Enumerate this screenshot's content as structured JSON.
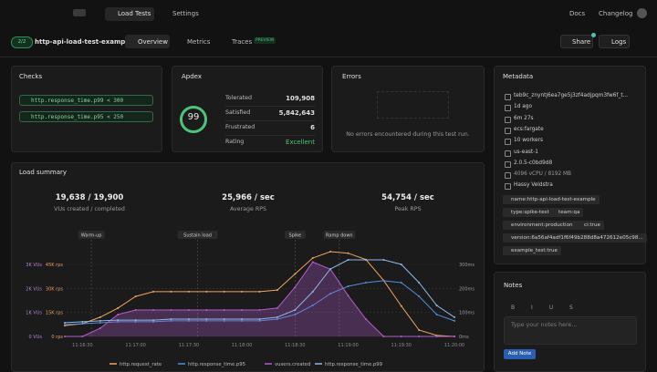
{
  "nav": {
    "items": [
      "Load Tests",
      "Settings"
    ],
    "right": [
      "Docs",
      "Changelog"
    ]
  },
  "header": {
    "badge": "2/2",
    "test_name": "http-api-load-test-example",
    "tabs": [
      "Overview",
      "Metrics",
      "Traces"
    ],
    "preview": "PREVIEW",
    "buttons": [
      "Share",
      "Logs"
    ]
  },
  "checks": {
    "title": "Checks",
    "items": [
      "http.response_time.p99 < 300",
      "http.response_time.p95 < 250"
    ]
  },
  "apdex": {
    "title": "Apdex",
    "score": 99,
    "rows": [
      {
        "label": "Tolerated",
        "value": "109,908"
      },
      {
        "label": "Satisfied",
        "value": "5,842,643"
      },
      {
        "label": "Frustrated",
        "value": "6"
      },
      {
        "label": "Rating",
        "value": "Excellent"
      }
    ]
  },
  "errors": {
    "title": "Errors",
    "message": "No errors encountered during this test run."
  },
  "metadata": {
    "title": "Metadata",
    "items": [
      "teb9c_znyntj6ea7ge5j3zf4adjpqm3fw6f_t...",
      "1d ago",
      "6m 27s",
      "ecs:fargate",
      "10 workers",
      "us-east-1",
      "2.0.5-c0bd9d8",
      "4096 vCPU / 8192 MB",
      "Hassy Veldstra"
    ],
    "tags": [
      "name:http-api-load-test-example",
      "type:spike-test",
      "team:qa",
      "environment:production",
      "ci:true",
      "version:6a56af4adf1f6f49b288d8a472612e05c98...",
      "example_test:true"
    ]
  },
  "load_summary": {
    "title": "Load summary",
    "stats": [
      {
        "value": "19,638 / 19,900",
        "label": "VUs created / completed"
      },
      {
        "value": "25,966 / sec",
        "label": "Average RPS"
      },
      {
        "value": "54,754 / sec",
        "label": "Peak RPS"
      }
    ],
    "chart": {
      "type": "line",
      "x": [
        "11:16:20",
        "11:16:30",
        "11:16:40",
        "11:16:50",
        "11:17:00",
        "11:17:10",
        "11:17:20",
        "11:17:30",
        "11:17:40",
        "11:17:50",
        "11:18:00",
        "11:18:10",
        "11:18:20",
        "11:18:30",
        "11:18:40",
        "11:18:50",
        "11:19:00",
        "11:19:10",
        "11:19:20",
        "11:19:30",
        "11:19:40",
        "11:19:50",
        "11:20:00"
      ],
      "xlim": [
        "11:16:20",
        "11:20:00"
      ],
      "xticks": [
        "11:16:30",
        "11:17:00",
        "11:17:30",
        "11:18:00",
        "11:18:30",
        "11:19:00",
        "11:19:30",
        "11:20:00"
      ],
      "axes": {
        "vus": {
          "lim": [
            0,
            3760
          ],
          "ticks": [
            {
              "value": 0,
              "label": "0 VUs"
            },
            {
              "value": 1000,
              "label": "1K VUs"
            },
            {
              "value": 2000,
              "label": "2K VUs"
            },
            {
              "value": 3000,
              "label": "3K VUs"
            }
          ]
        },
        "rps": {
          "lim": [
            0,
            56400
          ],
          "ticks": [
            {
              "value": 0,
              "label": "0 rps"
            },
            {
              "value": 15000,
              "label": "15K rps"
            },
            {
              "value": 30000,
              "label": "30K rps"
            },
            {
              "value": 45000,
              "label": "45K rps"
            }
          ]
        },
        "ms": {
          "lim": [
            0,
            376
          ],
          "ticks": [
            {
              "value": 0,
              "label": "0ms"
            },
            {
              "value": 100,
              "label": "100ms"
            },
            {
              "value": 200,
              "label": "200ms"
            },
            {
              "value": 300,
              "label": "300ms"
            }
          ]
        }
      },
      "grid": true,
      "annotations": [
        {
          "label": "Warm-up",
          "x": "11:16:35"
        },
        {
          "label": "Sustain load",
          "x": "11:17:35"
        },
        {
          "label": "Spike",
          "x": "11:18:30"
        },
        {
          "label": "Ramp down",
          "x": "11:18:55"
        }
      ],
      "series": [
        {
          "name": "http.request_rate",
          "color": "#f0a35e",
          "axis": "rps",
          "values": [
            6800,
            8000,
            12000,
            17700,
            25000,
            28000,
            28000,
            28000,
            28000,
            28000,
            28000,
            28000,
            29000,
            39000,
            49000,
            53000,
            52000,
            48000,
            35000,
            19000,
            4000,
            600,
            0
          ]
        },
        {
          "name": "http.response_time.p95",
          "color": "#4f8fd8",
          "axis": "ms",
          "values": [
            49,
            53,
            57,
            61,
            61,
            61,
            65,
            65,
            65,
            65,
            65,
            65,
            72,
            91,
            129,
            178,
            209,
            224,
            232,
            224,
            167,
            91,
            65
          ]
        },
        {
          "name": "vusers.created",
          "color": "#b35ccf",
          "axis": "vus",
          "area": true,
          "values": [
            0,
            0,
            340,
            910,
            1100,
            1100,
            1100,
            1100,
            1100,
            1100,
            1100,
            1100,
            1180,
            2050,
            3100,
            2800,
            1700,
            720,
            0,
            0,
            0,
            0,
            0
          ]
        },
        {
          "name": "http.response_time.p99",
          "color": "#8fb8e8",
          "axis": "ms",
          "values": [
            57,
            61,
            65,
            68,
            68,
            68,
            72,
            72,
            72,
            72,
            72,
            72,
            80,
            110,
            186,
            281,
            319,
            319,
            319,
            300,
            224,
            129,
            80
          ]
        }
      ]
    }
  },
  "notes": {
    "title": "Notes",
    "placeholder": "Type your notes here...",
    "button": "Add Note"
  }
}
